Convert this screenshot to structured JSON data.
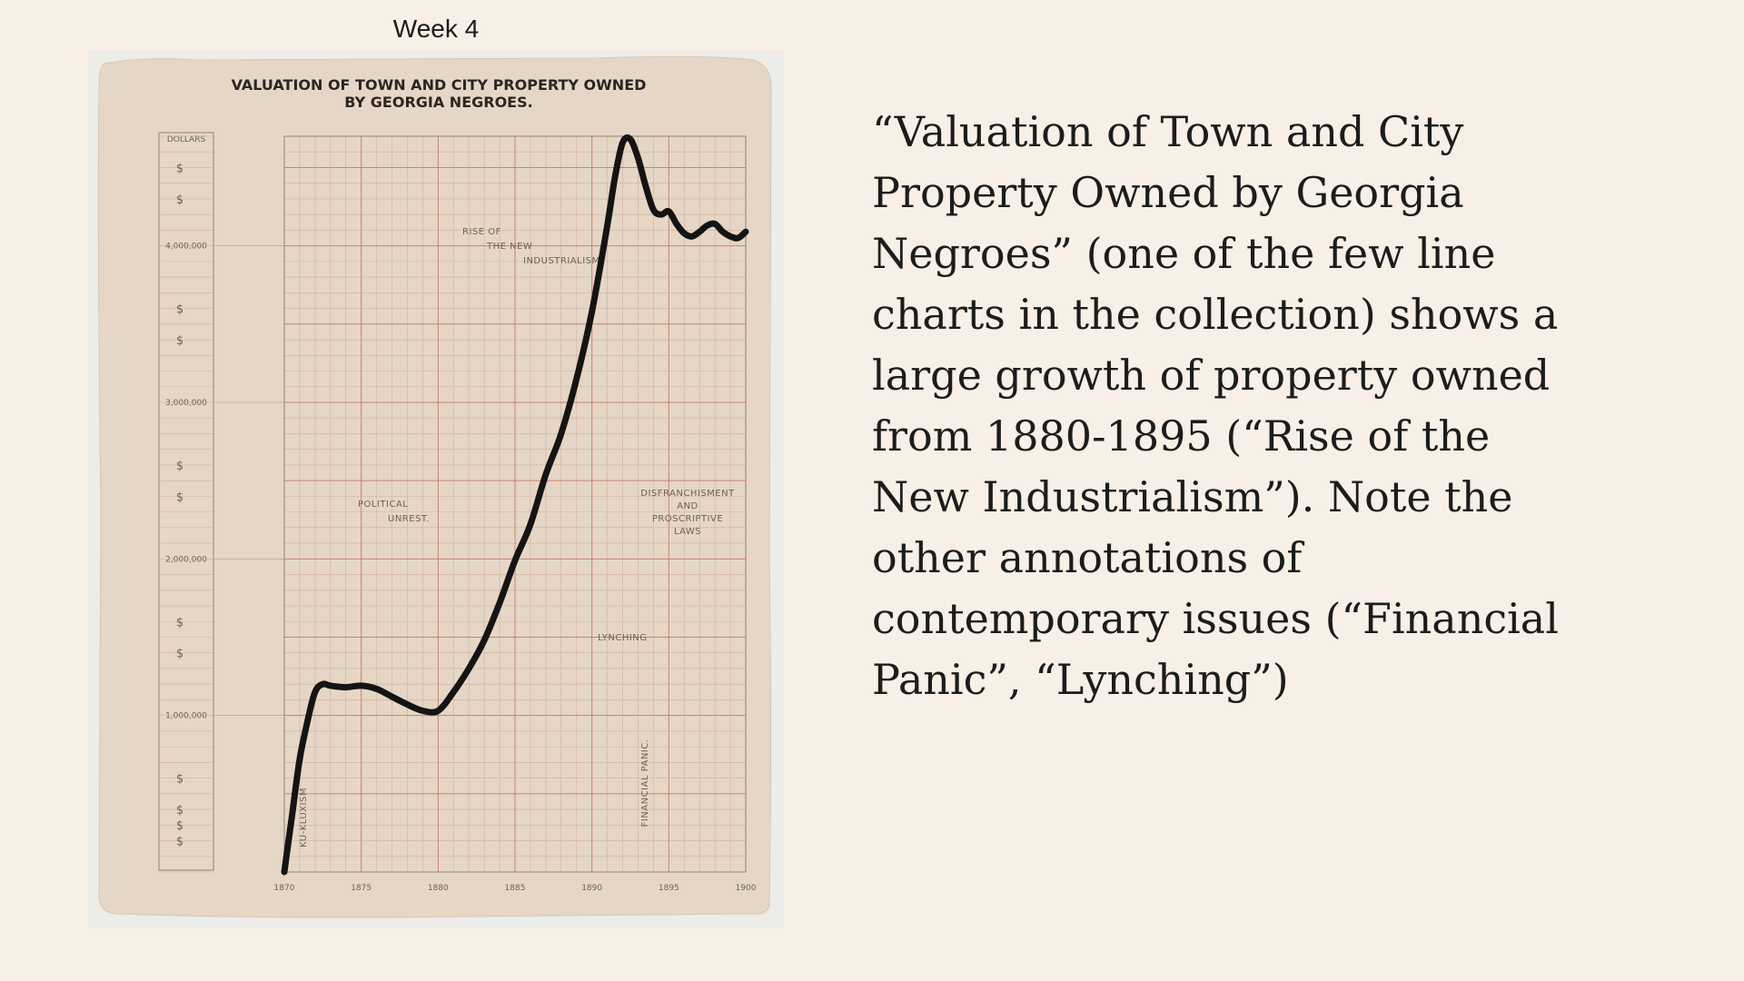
{
  "header": {
    "week_label": "Week 4"
  },
  "caption": "“Valuation of Town and City Property Owned by Georgia Negroes” (one of the few line charts in the collection) shows a large growth of property owned from 1880-1895 (“Rise of the New Industrialism”). Note the other annotations of contemporary issues (“Financial Panic”, “Lynching”)",
  "colors": {
    "page_background": "#f8efe6",
    "paper": "#e6d6c5",
    "grid_fine": "#c8a396",
    "grid_red": "#c97670",
    "line": "#141414"
  },
  "chart_data": {
    "type": "line",
    "title": "VALUATION OF TOWN AND CITY PROPERTY OWNED BY GEORGIA NEGROES.",
    "title_lines": [
      "VALUATION OF TOWN AND CITY PROPERTY OWNED",
      "BY GEORGIA NEGROES."
    ],
    "ylabel": "DOLLARS",
    "xlim": [
      1870,
      1900
    ],
    "ylim": [
      0,
      4700000
    ],
    "x_ticks": [
      "1870",
      "1875",
      "1880",
      "1885",
      "1890",
      "1895",
      "1900"
    ],
    "y_ticks": [
      {
        "value": 1000000,
        "label": "1,000,000"
      },
      {
        "value": 2000000,
        "label": "2,000,000"
      },
      {
        "value": 3000000,
        "label": "3,000,000"
      },
      {
        "value": 4000000,
        "label": "4,000,000"
      }
    ],
    "dollar_marks": [
      200000,
      400000,
      400000,
      600000,
      1400000,
      1600000,
      2400000,
      2600000,
      3400000,
      3600000,
      4300000,
      4500000
    ],
    "dollar_symbol": "$",
    "grid": true,
    "series": [
      {
        "x": [
          1870,
          1870.5,
          1871,
          1871.5,
          1872,
          1872.5,
          1873,
          1874,
          1875,
          1876,
          1877,
          1878,
          1879,
          1880,
          1881,
          1882,
          1883,
          1884,
          1885,
          1886,
          1887,
          1888,
          1889,
          1890,
          1891,
          1891.5,
          1892,
          1892.5,
          1893,
          1893.5,
          1894,
          1894.5,
          1895,
          1895.5,
          1896,
          1896.5,
          1897,
          1897.5,
          1898,
          1898.5,
          1899,
          1899.5,
          1900
        ],
        "y": [
          0,
          360000,
          720000,
          960000,
          1150000,
          1200000,
          1190000,
          1180000,
          1190000,
          1170000,
          1120000,
          1070000,
          1030000,
          1030000,
          1150000,
          1300000,
          1480000,
          1720000,
          1990000,
          2220000,
          2540000,
          2800000,
          3150000,
          3580000,
          4130000,
          4440000,
          4660000,
          4680000,
          4560000,
          4380000,
          4230000,
          4200000,
          4220000,
          4140000,
          4080000,
          4060000,
          4090000,
          4130000,
          4140000,
          4090000,
          4060000,
          4050000,
          4090000
        ]
      }
    ],
    "annotations": [
      {
        "lines": [
          "RISE OF",
          "THE NEW",
          "INDUSTRIALISM."
        ]
      },
      {
        "lines": [
          "POLITICAL",
          "UNREST."
        ]
      },
      {
        "lines": [
          "DISFRANCHISMENT",
          "AND",
          "PROSCRIPTIVE",
          "LAWS"
        ]
      },
      {
        "lines": [
          "LYNCHING"
        ]
      },
      {
        "lines": [
          "KU-KLUXISM"
        ]
      },
      {
        "lines": [
          "FINANCIAL PANIC."
        ]
      }
    ]
  }
}
